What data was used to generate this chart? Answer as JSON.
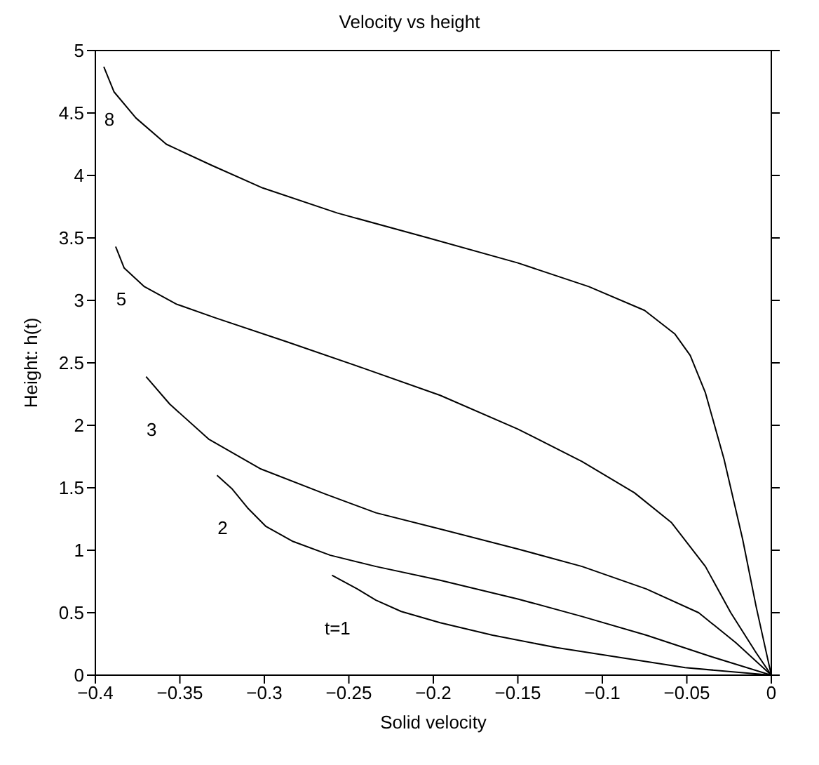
{
  "chart_data": {
    "type": "line",
    "title": "Velocity vs  height",
    "xlabel": "Solid velocity",
    "ylabel": "Height: h(t)",
    "xlim": [
      -0.4,
      0
    ],
    "xticks": [
      {
        "value": -0.4,
        "label": "−0.4"
      },
      {
        "value": -0.35,
        "label": "−0.35"
      },
      {
        "value": -0.3,
        "label": "−0.3"
      },
      {
        "value": -0.25,
        "label": "−0.25"
      },
      {
        "value": -0.2,
        "label": "−0.2"
      },
      {
        "value": -0.15,
        "label": "−0.15"
      },
      {
        "value": -0.1,
        "label": "−0.1"
      },
      {
        "value": -0.05,
        "label": "−0.05"
      },
      0
    ],
    "ylim": [
      0,
      5
    ],
    "yticks": [
      0,
      0.5,
      1,
      1.5,
      2,
      2.5,
      3,
      3.5,
      4,
      4.5,
      5
    ],
    "grid": false,
    "legend": false,
    "marker": "none",
    "line_style": "solid",
    "series": [
      {
        "name": "8",
        "color": "#000000",
        "x": [
          -0.395,
          -0.389,
          -0.376,
          -0.358,
          -0.331,
          -0.301,
          -0.257,
          -0.203,
          -0.15,
          -0.108,
          -0.075,
          -0.057,
          -0.048,
          -0.039,
          -0.028,
          -0.017,
          -0.009,
          0
        ],
        "values": [
          4.87,
          4.67,
          4.46,
          4.25,
          4.08,
          3.9,
          3.7,
          3.5,
          3.3,
          3.11,
          2.92,
          2.73,
          2.56,
          2.26,
          1.73,
          1.09,
          0.55,
          0
        ]
      },
      {
        "name": "5",
        "color": "#000000",
        "x": [
          -0.388,
          -0.383,
          -0.371,
          -0.352,
          -0.329,
          -0.287,
          -0.242,
          -0.196,
          -0.15,
          -0.112,
          -0.081,
          -0.059,
          -0.039,
          -0.024,
          -0.009,
          0
        ],
        "values": [
          3.43,
          3.26,
          3.11,
          2.97,
          2.86,
          2.67,
          2.46,
          2.24,
          1.97,
          1.71,
          1.46,
          1.22,
          0.87,
          0.5,
          0.18,
          0
        ]
      },
      {
        "name": "3",
        "color": "#000000",
        "x": [
          -0.37,
          -0.356,
          -0.333,
          -0.302,
          -0.264,
          -0.234,
          -0.196,
          -0.15,
          -0.112,
          -0.074,
          -0.043,
          -0.021,
          0
        ],
        "values": [
          2.39,
          2.17,
          1.89,
          1.65,
          1.45,
          1.3,
          1.17,
          1.01,
          0.87,
          0.69,
          0.5,
          0.26,
          0
        ]
      },
      {
        "name": "2",
        "color": "#000000",
        "x": [
          -0.328,
          -0.319,
          -0.31,
          -0.299,
          -0.283,
          -0.261,
          -0.234,
          -0.196,
          -0.15,
          -0.112,
          -0.074,
          -0.036,
          0
        ],
        "values": [
          1.6,
          1.49,
          1.34,
          1.19,
          1.07,
          0.96,
          0.87,
          0.76,
          0.61,
          0.47,
          0.32,
          0.15,
          0
        ]
      },
      {
        "name": "t=1",
        "color": "#000000",
        "x": [
          -0.26,
          -0.245,
          -0.234,
          -0.219,
          -0.196,
          -0.165,
          -0.127,
          -0.089,
          -0.051,
          0
        ],
        "values": [
          0.8,
          0.69,
          0.6,
          0.51,
          0.42,
          0.32,
          0.22,
          0.14,
          0.06,
          0
        ]
      }
    ]
  }
}
